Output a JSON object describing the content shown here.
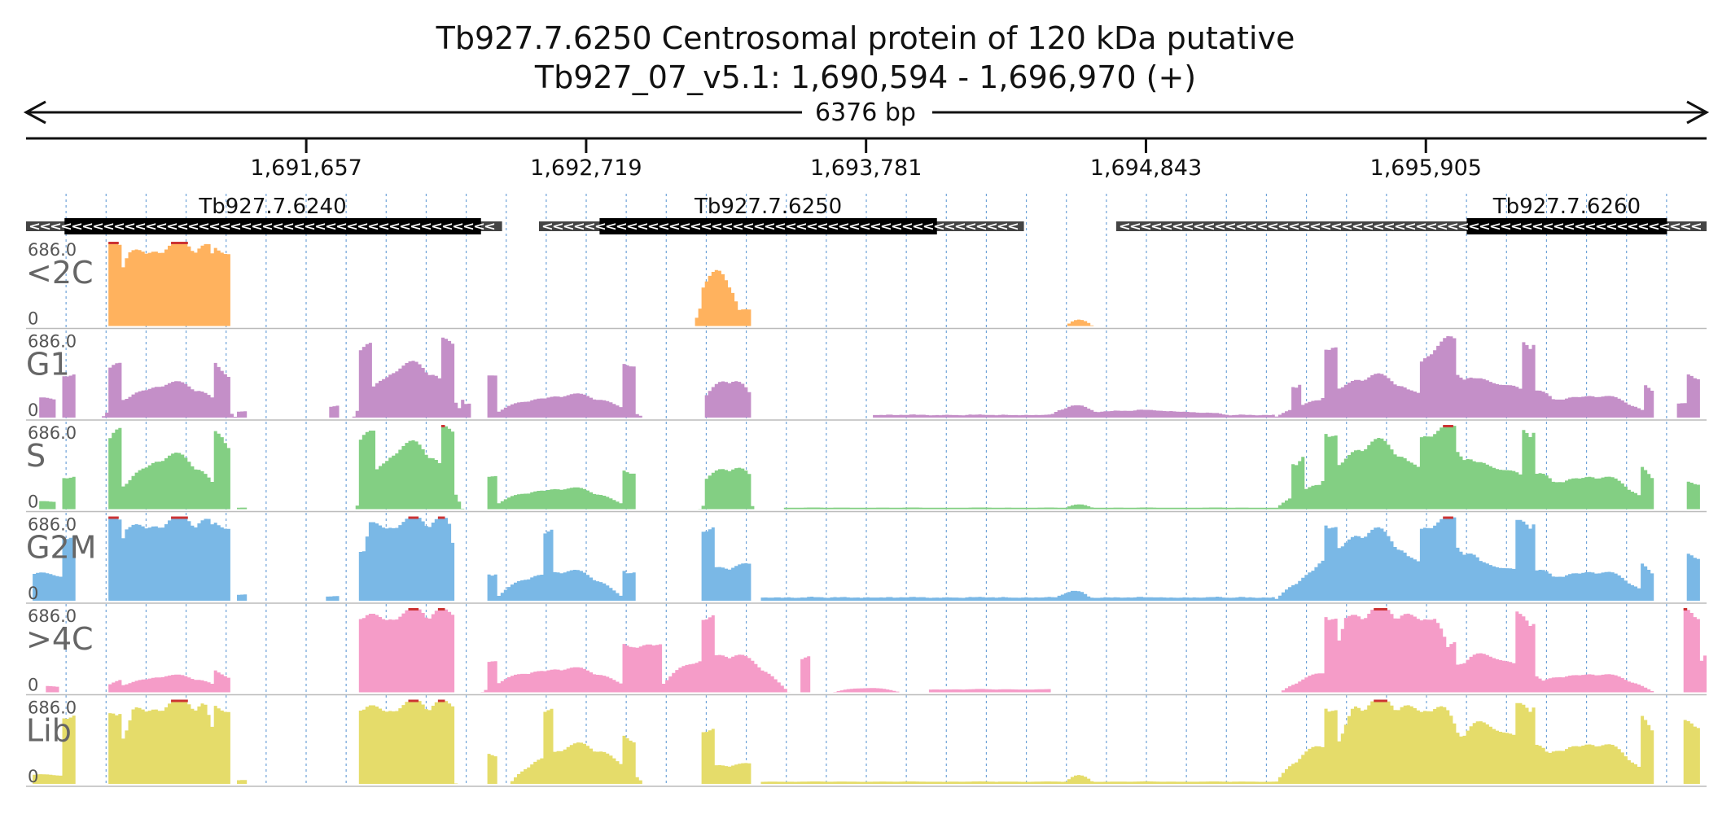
{
  "chart_data": {
    "type": "area",
    "title": "Tb927.7.6250  Centrosomal protein of 120 kDa  putative",
    "subtitle": "Tb927_07_v5.1: 1,690,594 - 1,696,970 (+)",
    "span_label": "6376 bp",
    "xlim": [
      1690594,
      1696970
    ],
    "x_ticks": [
      {
        "value": 1691657,
        "label": "1,691,657"
      },
      {
        "value": 1692719,
        "label": "1,692,719"
      },
      {
        "value": 1693781,
        "label": "1,693,781"
      },
      {
        "value": 1694843,
        "label": "1,694,843"
      },
      {
        "value": 1695905,
        "label": "1,695,905"
      }
    ],
    "genes": [
      {
        "name": "Tb927.7.6240",
        "start": 1690594,
        "end": 1692400,
        "cds_start": 1690740,
        "cds_end": 1692320,
        "strand": "-"
      },
      {
        "name": "Tb927.7.6250",
        "start": 1692540,
        "end": 1694380,
        "cds_start": 1692770,
        "cds_end": 1694050,
        "strand": "-"
      },
      {
        "name": "Tb927.7.6260",
        "start": 1694730,
        "end": 1696970,
        "cds_start": 1696060,
        "cds_end": 1696820,
        "strand": "-"
      }
    ],
    "tracks": [
      {
        "name": "<2C",
        "ymax": "686.0",
        "ymin": "0",
        "color": "#ffb25e",
        "key": "c2"
      },
      {
        "name": "G1",
        "ymax": "686.0",
        "ymin": "0",
        "color": "#c48fc8",
        "key": "g1"
      },
      {
        "name": "S",
        "ymax": "686.0",
        "ymin": "0",
        "color": "#83cf83",
        "key": "s"
      },
      {
        "name": "G2M",
        "ymax": "686.0",
        "ymin": "0",
        "color": "#7ab8e6",
        "key": "g2m"
      },
      {
        "name": ">4C",
        "ymax": "686.0",
        "ymin": "0",
        "color": "#f59cc8",
        "key": "c4"
      },
      {
        "name": "Lib",
        "ymax": "686.0",
        "ymin": "0",
        "color": "#e5dc6a",
        "key": "lib"
      }
    ],
    "clip_color": "#cc3333",
    "grid": true
  }
}
